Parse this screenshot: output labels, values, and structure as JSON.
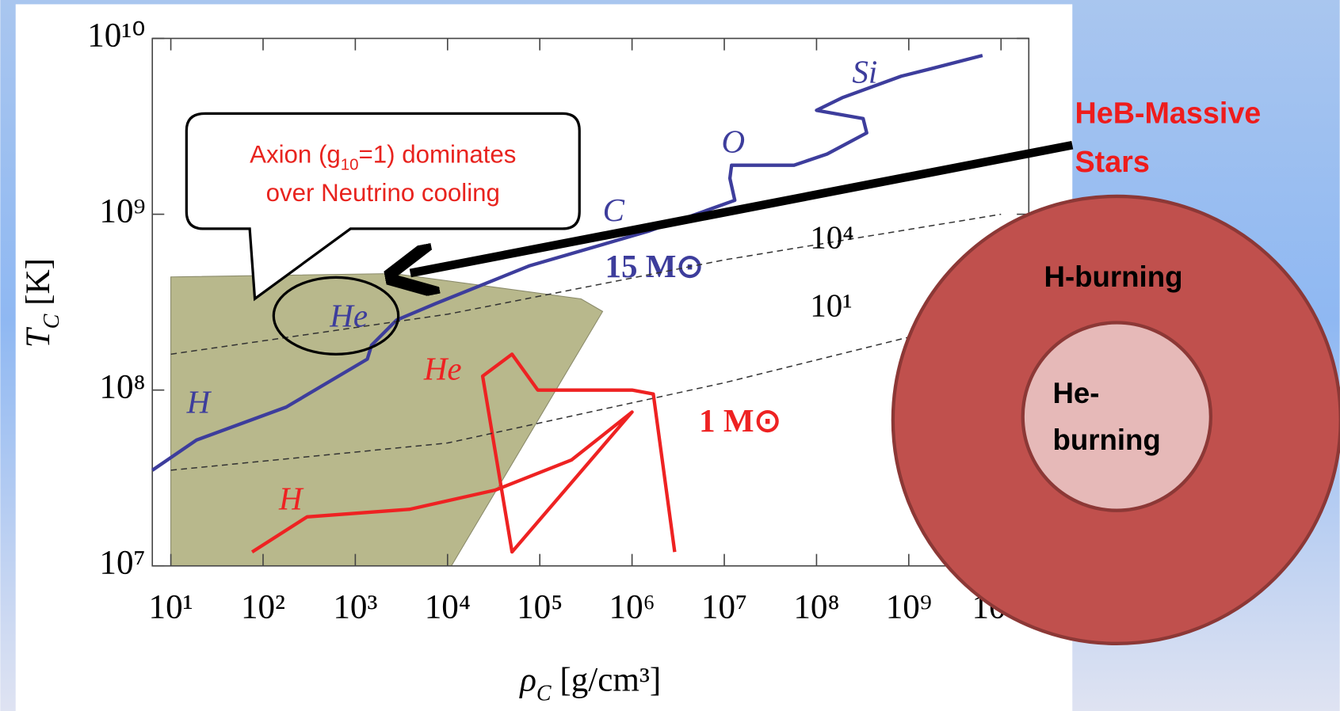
{
  "chart_data": {
    "type": "line",
    "xscale": "log",
    "yscale": "log",
    "xlim": [
      6.3,
      20000000000
    ],
    "ylim": [
      10000000,
      10000000000
    ],
    "xticks": [
      {
        "value": 10,
        "label": "10¹"
      },
      {
        "value": 100,
        "label": "10²"
      },
      {
        "value": 1000,
        "label": "10³"
      },
      {
        "value": 10000,
        "label": "10⁴"
      },
      {
        "value": 100000,
        "label": "10⁵"
      },
      {
        "value": 1000000,
        "label": "10⁶"
      },
      {
        "value": 10000000,
        "label": "10⁷"
      },
      {
        "value": 100000000,
        "label": "10⁸"
      },
      {
        "value": 1000000000,
        "label": "10⁹"
      },
      {
        "value": 10000000000,
        "label": "10¹⁰"
      }
    ],
    "yticks": [
      {
        "value": 10000000,
        "label": "10⁷"
      },
      {
        "value": 100000000,
        "label": "10⁸"
      },
      {
        "value": 1000000000,
        "label": "10⁹"
      },
      {
        "value": 10000000000,
        "label": "10¹⁰"
      }
    ],
    "xlabel": {
      "symbol": "ρ",
      "subscript": "C",
      "unit": "[g/cm³]"
    },
    "ylabel": {
      "symbol": "T",
      "subscript": "C",
      "unit": "[K]"
    },
    "region": {
      "color": "#b8b88c",
      "x": [
        10,
        2600,
        280000,
        480000,
        11000,
        10
      ],
      "values": [
        440000000,
        460000000,
        330000000,
        280000000,
        10000000,
        10000000
      ]
    },
    "series": [
      {
        "name": "15 M⊙",
        "color": "#3d3d9c",
        "style": "solid",
        "x": [
          6.3,
          19,
          178,
          1350,
          1500,
          2800,
          7400,
          78000,
          1500000,
          13000000,
          11500000,
          12000000,
          57000000,
          130000000,
          350000000,
          320000000,
          100000000,
          190000000,
          830000000,
          1700000000,
          6300000000
        ],
        "values": [
          35000000,
          52000000,
          80000000,
          150000000,
          180000000,
          250000000,
          310000000,
          510000000,
          800000000,
          1200000000,
          1600000000,
          1900000000,
          1900000000,
          2200000000,
          2900000000,
          3500000000,
          3900000000,
          4600000000,
          6100000000,
          6700000000,
          8000000000
        ]
      },
      {
        "name": "1 M⊙",
        "color": "#ee2222",
        "style": "solid",
        "x": [
          76,
          300,
          3900,
          33000,
          220000,
          1000000,
          50000,
          24000,
          50000,
          95000,
          1000000,
          1700000,
          2900000
        ],
        "values": [
          12000000,
          19000000,
          21000000,
          27000000,
          40000000,
          75000000,
          12000000,
          120000000,
          160000000,
          100000000,
          100000000,
          95000000,
          12000000
        ]
      },
      {
        "name": "10⁴",
        "color": "#333333",
        "style": "dashed",
        "x": [
          10,
          10000,
          10000000,
          10000000000
        ],
        "values": [
          160000000,
          270000000,
          550000000,
          1000000000
        ]
      },
      {
        "name": "10¹",
        "color": "#333333",
        "style": "dashed",
        "x": [
          10,
          10000,
          10000000,
          1000000000
        ],
        "values": [
          35000000,
          50000000,
          110000000,
          200000000
        ]
      }
    ],
    "annotations": [
      "H",
      "He",
      "C",
      "O",
      "Si",
      "He",
      "H"
    ]
  },
  "callout": {
    "lines": [
      {
        "before": "Axion (g",
        "sub": "10",
        "after": "=1) dominates"
      },
      {
        "before": "over Neutrino cooling"
      }
    ]
  },
  "side": {
    "title_lines": [
      "HeB-Massive",
      "Stars"
    ],
    "outer_label": "H-burning",
    "inner_lines": [
      "He-",
      "burning"
    ]
  }
}
